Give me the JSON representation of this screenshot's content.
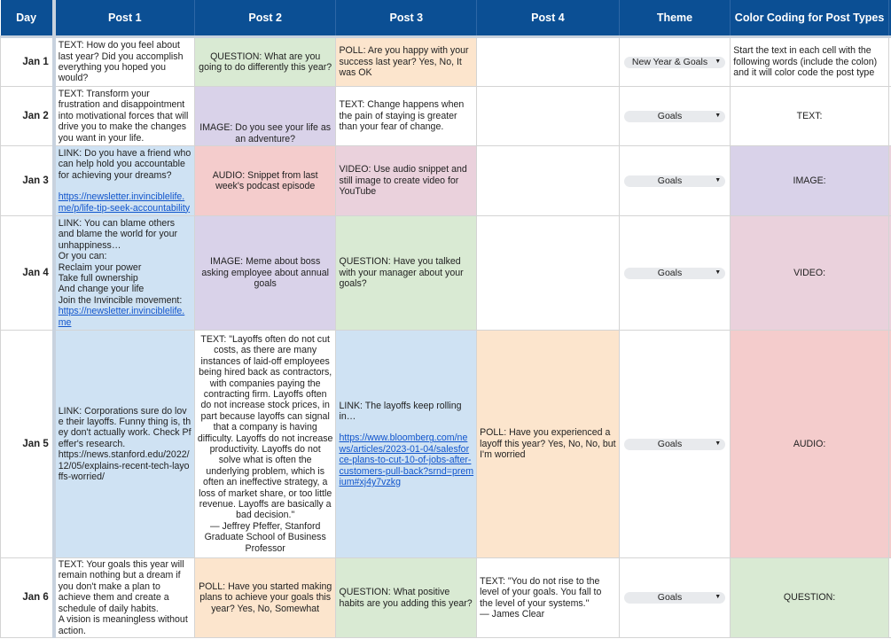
{
  "headers": {
    "day": "Day",
    "post1": "Post 1",
    "post2": "Post 2",
    "post3": "Post 3",
    "post4": "Post 4",
    "theme": "Theme",
    "color": "Color Coding for Post Types"
  },
  "type_colors": {
    "TEXT": "#ffffff",
    "QUESTION": "#d9ead3",
    "POLL": "#fce5cd",
    "IMAGE": "#d9d2e9",
    "AUDIO": "#f4cccc",
    "VIDEO": "#ead1dc",
    "LINK": "#cfe2f3"
  },
  "header_color": "#0b4f94",
  "rows": [
    {
      "day": "Jan 1",
      "p1": {
        "type": "TEXT",
        "text": "TEXT: How do you feel about last year? Did you accomplish everything you hoped you would?"
      },
      "p2": {
        "type": "QUESTION",
        "text": "QUESTION: What are you going to do differently this year?"
      },
      "p3": {
        "type": "POLL",
        "text": "POLL: Are you happy with your success last year? Yes, No, It was OK"
      },
      "p4": {
        "type": "",
        "text": ""
      },
      "theme": "New Year & Goals",
      "color": "Start the text in each cell with the following words (include the colon) and it will color code the post type"
    },
    {
      "day": "Jan 2",
      "p1": {
        "type": "TEXT",
        "text": "TEXT: Transform your frustration and disappointment into motivational forces that will drive you to make the changes you want in your life."
      },
      "p2": {
        "type": "IMAGE",
        "text": "IMAGE: Do you see your life as an adventure?"
      },
      "p3": {
        "type": "TEXT",
        "text": "TEXT: Change happens when the pain of staying is greater than your fear of change."
      },
      "p4": {
        "type": "",
        "text": ""
      },
      "theme": "Goals",
      "color": "TEXT:"
    },
    {
      "day": "Jan 3",
      "p1": {
        "type": "LINK",
        "text": "LINK: Do you have a friend who can help hold you accountable for achieving your dreams?",
        "link": "https://newsletter.invinciblelife.me/p/life-tip-seek-accountability"
      },
      "p2": {
        "type": "AUDIO",
        "text": "AUDIO: Snippet from last week's podcast episode"
      },
      "p3": {
        "type": "VIDEO",
        "text": "VIDEO: Use audio snippet and still image to create video for YouTube"
      },
      "p4": {
        "type": "",
        "text": ""
      },
      "theme": "Goals",
      "color": "IMAGE:"
    },
    {
      "day": "Jan 4",
      "p1": {
        "type": "LINK",
        "text": "LINK: You can blame others and blame the world for your unhappiness…\nOr you can:\nReclaim your power\nTake full ownership\nAnd change your life\nJoin the Invincible movement:",
        "link": "https://newsletter.invinciblelife.me"
      },
      "p2": {
        "type": "IMAGE",
        "text": "IMAGE: Meme about boss asking employee about annual goals"
      },
      "p3": {
        "type": "QUESTION",
        "text": "QUESTION: Have you talked with your manager about your goals?"
      },
      "p4": {
        "type": "",
        "text": ""
      },
      "theme": "Goals",
      "color": "VIDEO:"
    },
    {
      "day": "Jan 5",
      "p1": {
        "type": "LINK",
        "text": "LINK: Corporations sure do love their layoffs. Funny thing is, they don't actually work. Check Pfeffer's research.\nhttps://news.stanford.edu/2022/12/05/explains-recent-tech-layoffs-worried/"
      },
      "p2": {
        "type": "TEXT",
        "text": "TEXT: \"Layoffs often do not cut costs, as there are many instances of laid-off employees being hired back as contractors, with companies paying the contracting firm. Layoffs often do not increase stock prices, in part because layoffs can signal that a company is having difficulty. Layoffs do not increase productivity. Layoffs do not solve what is often the underlying problem, which is often an ineffective strategy, a loss of market share, or too little revenue. Layoffs are basically a bad decision.\"\n— Jeffrey Pfeffer, Stanford Graduate School of Business Professor"
      },
      "p3": {
        "type": "LINK",
        "text": "LINK: The layoffs keep rolling in…",
        "link": "https://www.bloomberg.com/news/articles/2023-01-04/salesforce-plans-to-cut-10-of-jobs-after-customers-pull-back?srnd=premium#xj4y7vzkg"
      },
      "p4": {
        "type": "POLL",
        "text": "POLL: Have you experienced a layoff this year? Yes, No, No, but I'm worried"
      },
      "theme": "Goals",
      "color": "AUDIO:"
    },
    {
      "day": "Jan 6",
      "p1": {
        "type": "TEXT",
        "text": "TEXT: Your goals this year will remain nothing but a dream if you don't make a plan to achieve them and create a schedule of daily habits.\nA vision is meaningless without action."
      },
      "p2": {
        "type": "POLL",
        "text": "POLL: Have you started making plans to achieve your goals this year? Yes, No, Somewhat"
      },
      "p3": {
        "type": "QUESTION",
        "text": "QUESTION: What positive habits are you adding this year?"
      },
      "p4": {
        "type": "TEXT",
        "text": "TEXT: \"You do not rise to the level of your goals. You fall to the level of your systems.\"\n— James Clear"
      },
      "theme": "Goals",
      "color": "QUESTION:"
    }
  ]
}
